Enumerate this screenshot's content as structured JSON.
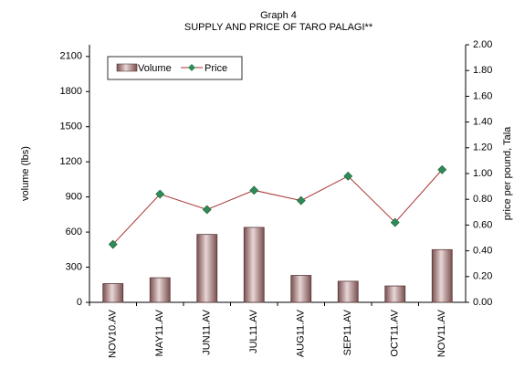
{
  "chart_data": {
    "type": "bar_line",
    "title": "Graph 4",
    "subtitle": "SUPPLY AND PRICE OF TARO PALAGI**",
    "y_label": "volume (lbs)",
    "y2_label": "price per pound, Tala",
    "categories": [
      "NOV10.AV",
      "MAY11.AV",
      "JUN11.AV",
      "JUL11.AV",
      "AUG11.AV",
      "SEP11.AV",
      "OCT11.AV",
      "NOV11.AV"
    ],
    "series": [
      {
        "name": "Volume",
        "type": "bar",
        "color": "#a57878",
        "values": [
          160,
          210,
          580,
          640,
          230,
          180,
          140,
          450
        ]
      },
      {
        "name": "Price",
        "type": "line",
        "axis": "y2",
        "color": "#a83232",
        "marker_color": "#2e8b57",
        "values": [
          0.45,
          0.84,
          0.72,
          0.87,
          0.79,
          0.98,
          0.62,
          1.03
        ]
      }
    ],
    "ylim": [
      0,
      2200
    ],
    "yticks": [
      0,
      300,
      600,
      900,
      1200,
      1500,
      1800,
      2100
    ],
    "y2lim": [
      0,
      2
    ],
    "y2ticks": [
      {
        "value": 0,
        "label": "0.00"
      },
      {
        "value": 0.2,
        "label": "0.20"
      },
      {
        "value": 0.4,
        "label": "0.40"
      },
      {
        "value": 0.6,
        "label": "0.60"
      },
      {
        "value": 0.8,
        "label": "0.80"
      },
      {
        "value": 1,
        "label": "1.00"
      },
      {
        "value": 1.2,
        "label": "1.20"
      },
      {
        "value": 1.4,
        "label": "1.40"
      },
      {
        "value": 1.6,
        "label": "1.60"
      },
      {
        "value": 1.8,
        "label": "1.80"
      },
      {
        "value": 2,
        "label": "2.00"
      }
    ],
    "legend": "top-left"
  }
}
